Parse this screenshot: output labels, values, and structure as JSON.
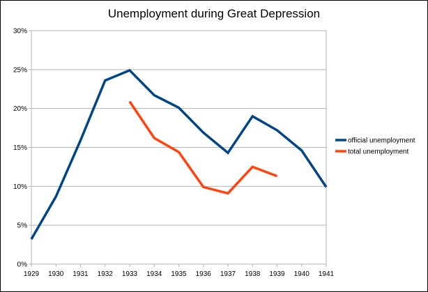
{
  "chart_data": {
    "type": "line",
    "title": "Unemployment during Great Depression",
    "xlabel": "",
    "ylabel": "",
    "x": [
      "1929",
      "1930",
      "1931",
      "1932",
      "1933",
      "1934",
      "1935",
      "1936",
      "1937",
      "1938",
      "1939",
      "1940",
      "1941"
    ],
    "ylim": [
      0,
      30
    ],
    "yticks": [
      "0%",
      "5%",
      "10%",
      "15%",
      "20%",
      "25%",
      "30%"
    ],
    "grid": true,
    "legend_position": "right",
    "series": [
      {
        "name": "official unemployment",
        "color": "#004586",
        "values": [
          3.2,
          8.7,
          15.9,
          23.6,
          24.9,
          21.7,
          20.1,
          16.9,
          14.3,
          19.0,
          17.2,
          14.6,
          9.9
        ]
      },
      {
        "name": "total unemployment",
        "color": "#ff420e",
        "values": [
          null,
          null,
          null,
          null,
          20.9,
          16.2,
          14.4,
          9.9,
          9.1,
          12.5,
          11.3,
          null,
          null
        ]
      }
    ]
  }
}
